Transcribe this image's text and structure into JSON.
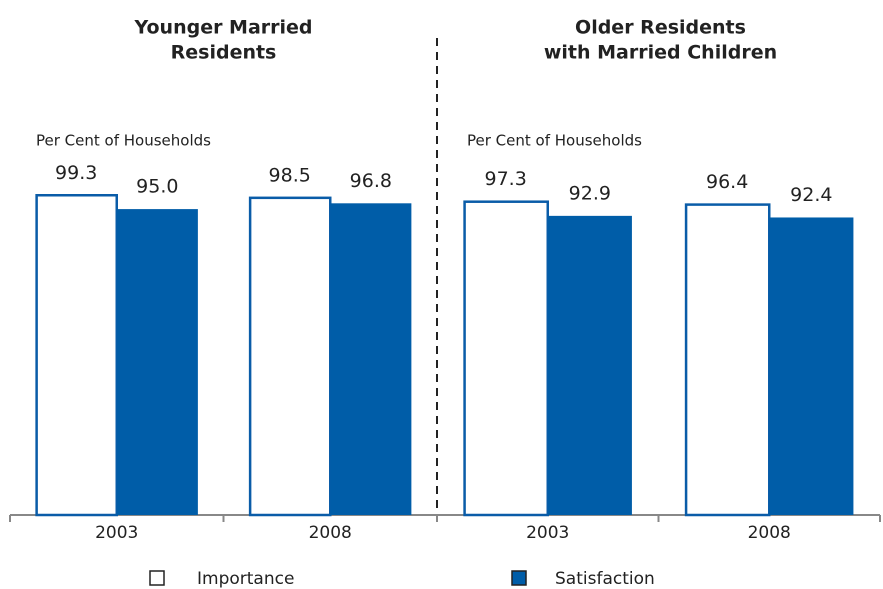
{
  "chart_data": [
    {
      "type": "bar",
      "title": [
        "Younger Married",
        "Residents"
      ],
      "ylabel": "Per Cent of Households",
      "categories": [
        "2003",
        "2008"
      ],
      "ylim": [
        0,
        100
      ],
      "series": [
        {
          "name": "Importance",
          "color": "#ffffff",
          "edgecolor": "#0a5ca8",
          "values": [
            99.3,
            98.5
          ],
          "value_labels": [
            "99.3",
            "98.5"
          ]
        },
        {
          "name": "Satisfaction",
          "color": "#005da8",
          "values": [
            95.0,
            96.8
          ],
          "value_labels": [
            "95.0",
            "96.8"
          ]
        }
      ]
    },
    {
      "type": "bar",
      "title": [
        "Older Residents",
        "with Married Children"
      ],
      "ylabel": "Per Cent of Households",
      "categories": [
        "2003",
        "2008"
      ],
      "ylim": [
        0,
        100
      ],
      "series": [
        {
          "color": "#ffffff",
          "edgecolor": "#0a5ca8",
          "values": [
            97.3,
            96.4
          ],
          "value_labels": [
            "97.3",
            "96.4"
          ]
        },
        {
          "color": "#005da8",
          "values": [
            92.9,
            92.4
          ],
          "value_labels": [
            "92.9",
            "92.4"
          ]
        }
      ]
    }
  ]
}
